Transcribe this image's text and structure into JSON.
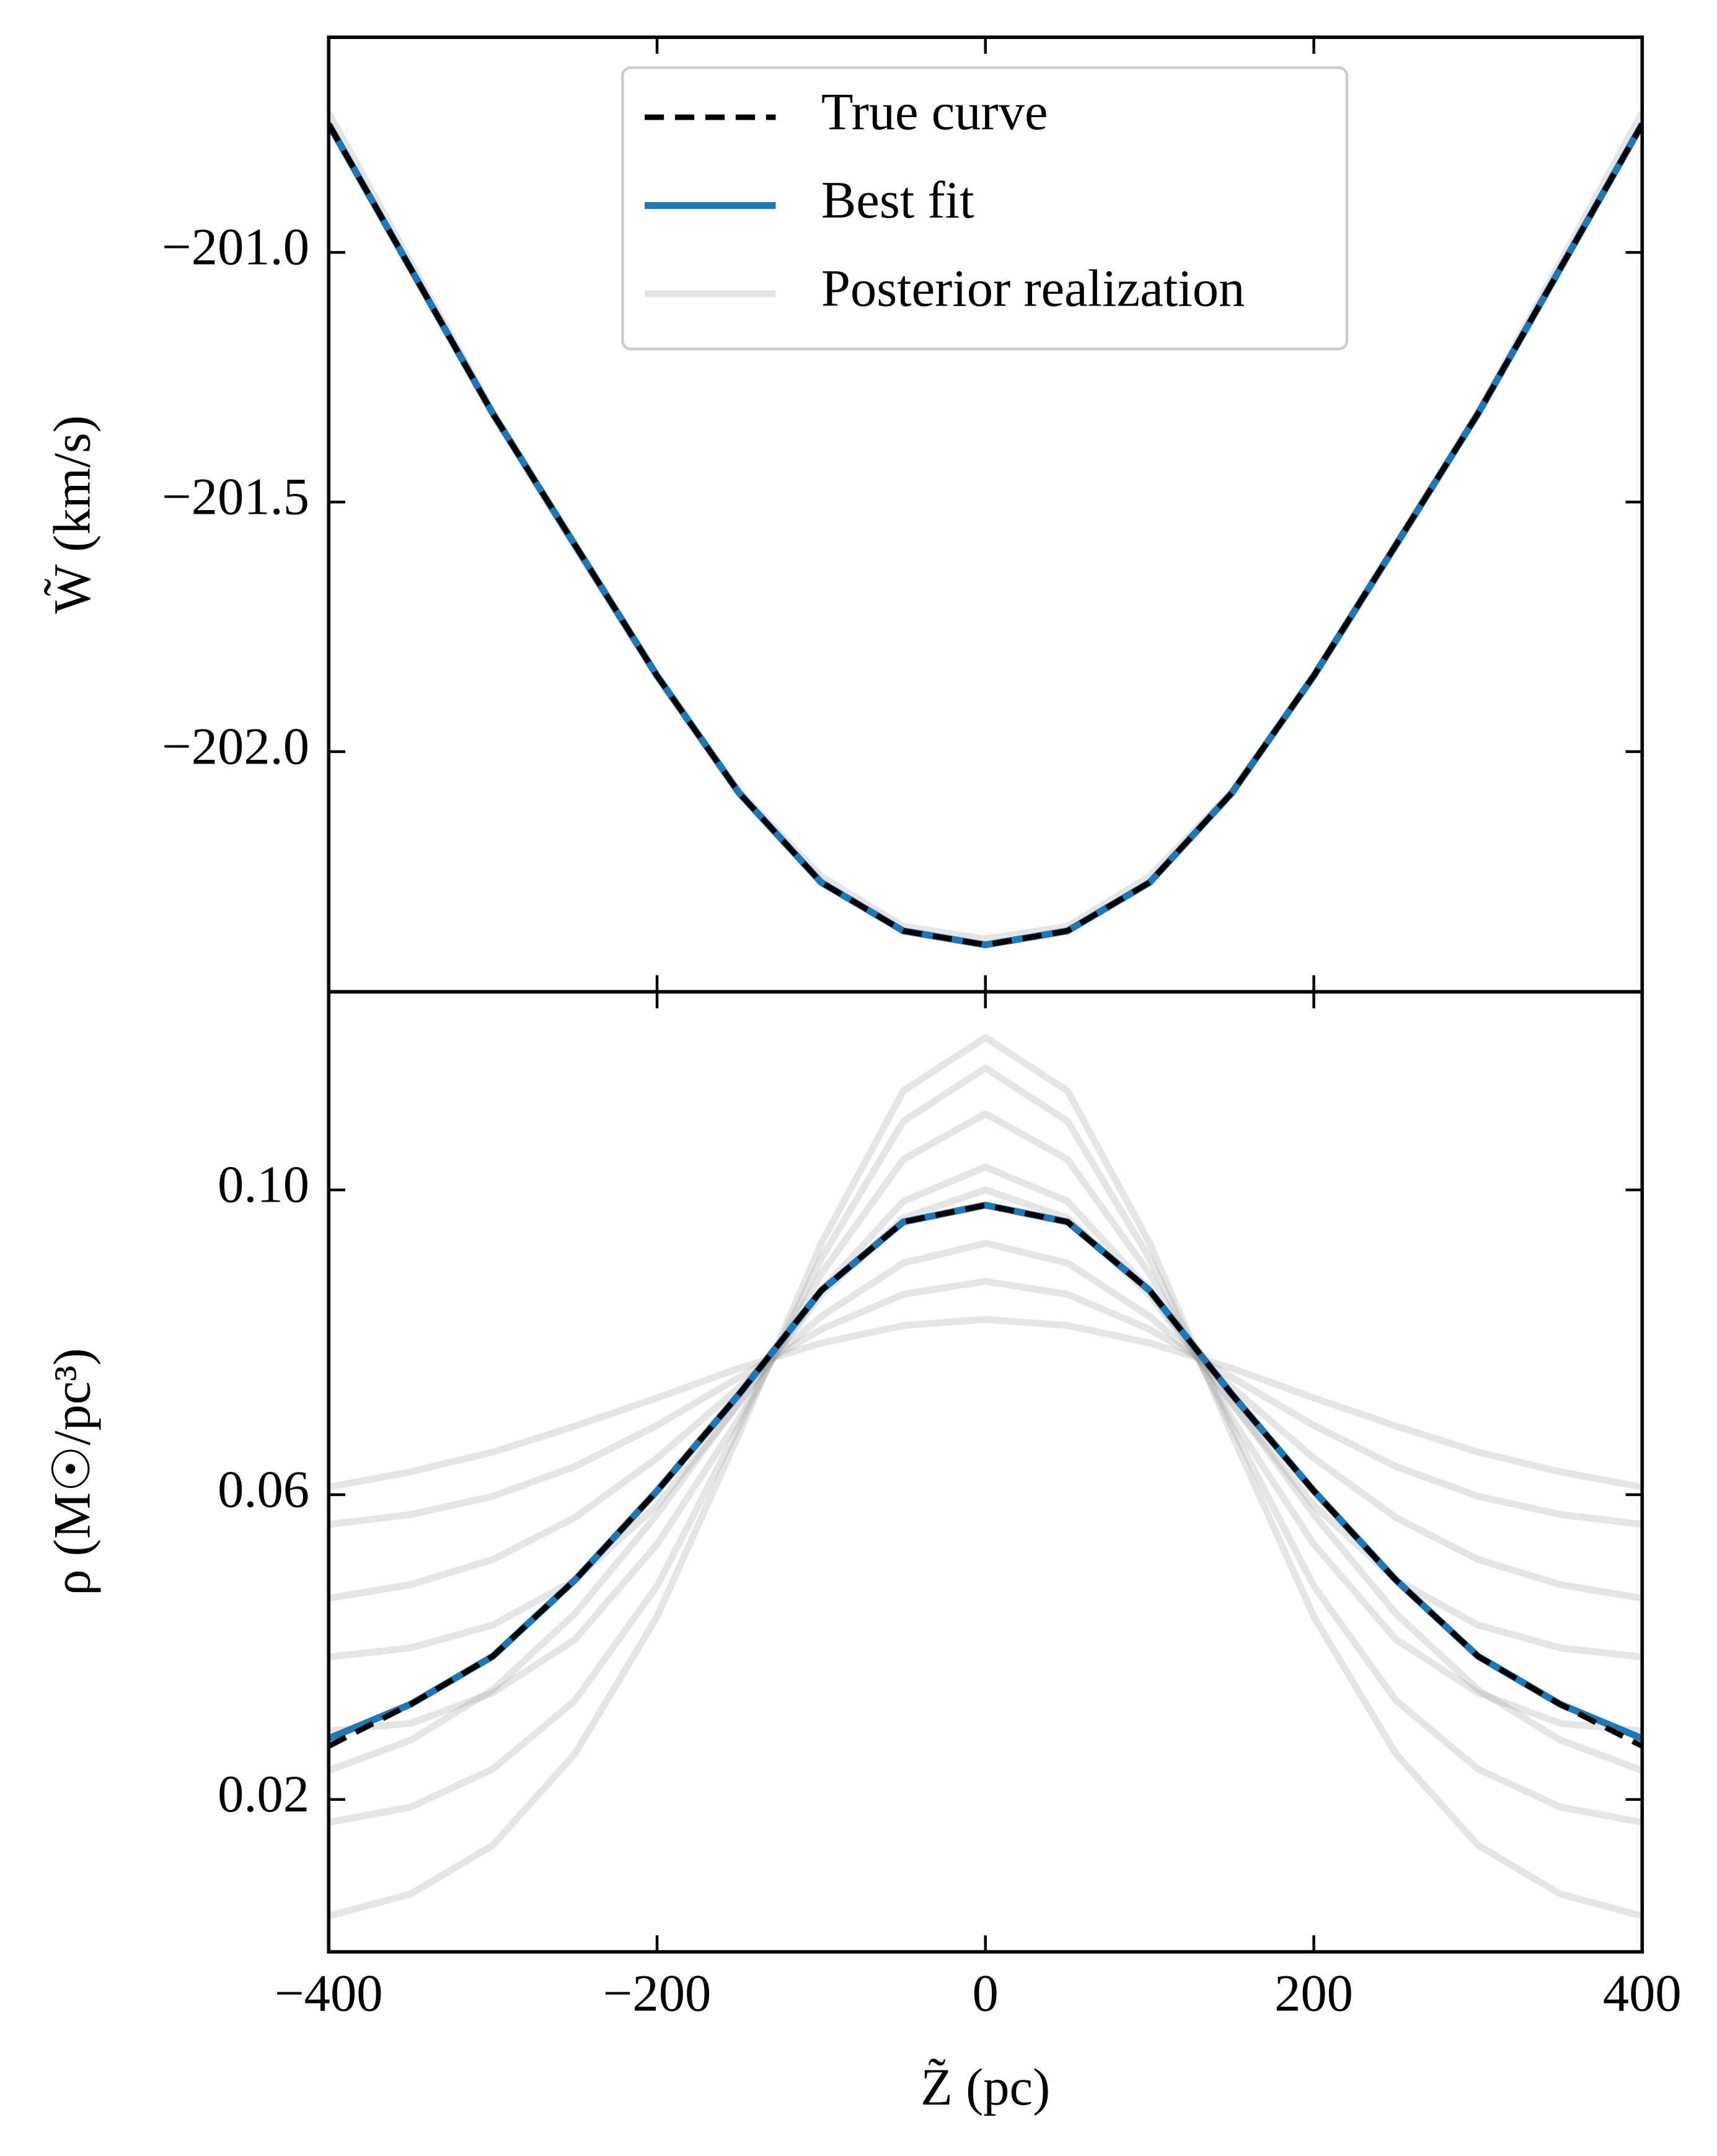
{
  "chart_data": [
    {
      "type": "line",
      "ylabel": "W̃ (km/s)",
      "x": [
        -400,
        -350,
        -300,
        -250,
        -200,
        -150,
        -100,
        -50,
        0,
        50,
        100,
        150,
        200,
        250,
        300,
        350,
        400
      ],
      "xlim": [
        -400,
        400
      ],
      "xticks": [
        -400,
        -200,
        0,
        200,
        400
      ],
      "ylim": [
        -202.481,
        -200.569
      ],
      "yticks": [
        {
          "value": -201.0,
          "label": "−201.0"
        },
        {
          "value": -201.5,
          "label": "−201.5"
        },
        {
          "value": -202.0,
          "label": "−202.0"
        }
      ],
      "legend": "upper center",
      "series": [
        {
          "name": "Posterior realization",
          "color": "#999999",
          "alpha": 0.25,
          "values": [
            -200.72,
            -201.02,
            -201.32,
            -201.59,
            -201.85,
            -202.08,
            -202.25,
            -202.35,
            -202.375,
            -202.35,
            -202.25,
            -202.08,
            -201.85,
            -201.59,
            -201.32,
            -201.02,
            -200.72
          ]
        },
        {
          "name": "Best fit",
          "color": "#1f77b4",
          "values": [
            -200.743,
            -201.033,
            -201.323,
            -201.586,
            -201.848,
            -202.083,
            -202.262,
            -202.359,
            -202.387,
            -202.359,
            -202.262,
            -202.083,
            -201.848,
            -201.586,
            -201.323,
            -201.033,
            -200.743
          ]
        },
        {
          "name": "True curve",
          "color": "#000000",
          "linestyle": "dashed",
          "values": [
            -200.743,
            -201.033,
            -201.323,
            -201.586,
            -201.848,
            -202.083,
            -202.262,
            -202.359,
            -202.387,
            -202.359,
            -202.262,
            -202.083,
            -201.848,
            -201.586,
            -201.323,
            -201.033,
            -200.743
          ]
        }
      ]
    },
    {
      "type": "line",
      "xlabel": "Z̃ (pc)",
      "ylabel": "ρ (M☉/pc³)",
      "x": [
        -400,
        -350,
        -300,
        -250,
        -200,
        -150,
        -100,
        -50,
        0,
        50,
        100,
        150,
        200,
        250,
        300,
        350,
        400
      ],
      "xlim": [
        -400,
        400
      ],
      "xticks": [
        {
          "value": -400,
          "label": "−400"
        },
        {
          "value": -200,
          "label": "−200"
        },
        0,
        200,
        400
      ],
      "ylim": [
        0,
        0.126
      ],
      "yticks": [
        0.02,
        0.06,
        {
          "value": 0.1,
          "label": "0.10"
        }
      ],
      "series": [
        {
          "color": "#999999",
          "alpha": 0.25,
          "values": [
            0.0047,
            0.0076,
            0.014,
            0.026,
            0.044,
            0.068,
            0.093,
            0.113,
            0.12,
            0.113,
            0.093,
            0.068,
            0.044,
            0.026,
            0.014,
            0.0076,
            0.0047
          ]
        },
        {
          "color": "#999999",
          "alpha": 0.25,
          "values": [
            0.017,
            0.019,
            0.024,
            0.033,
            0.048,
            0.069,
            0.091,
            0.109,
            0.116,
            0.109,
            0.091,
            0.069,
            0.048,
            0.033,
            0.024,
            0.019,
            0.017
          ]
        },
        {
          "color": "#999999",
          "alpha": 0.25,
          "values": [
            0.029,
            0.03,
            0.034,
            0.041,
            0.0535,
            0.07,
            0.089,
            0.104,
            0.11,
            0.104,
            0.089,
            0.07,
            0.0535,
            0.041,
            0.034,
            0.03,
            0.029
          ]
        },
        {
          "color": "#999999",
          "alpha": 0.25,
          "values": [
            0.0387,
            0.0399,
            0.0429,
            0.0488,
            0.0586,
            0.072,
            0.0868,
            0.0985,
            0.103,
            0.0985,
            0.0868,
            0.072,
            0.0586,
            0.0488,
            0.0429,
            0.0399,
            0.0387
          ]
        },
        {
          "color": "#999999",
          "alpha": 0.25,
          "values": [
            0.0464,
            0.0482,
            0.0515,
            0.057,
            0.0648,
            0.0741,
            0.0834,
            0.0904,
            0.093,
            0.0904,
            0.0834,
            0.0741,
            0.0648,
            0.057,
            0.0515,
            0.0482,
            0.0464
          ]
        },
        {
          "color": "#999999",
          "alpha": 0.25,
          "values": [
            0.0561,
            0.0574,
            0.0598,
            0.0637,
            0.0691,
            0.0754,
            0.0817,
            0.0863,
            0.088,
            0.0863,
            0.0817,
            0.0754,
            0.0691,
            0.0637,
            0.0598,
            0.0574,
            0.0561
          ]
        },
        {
          "color": "#999999",
          "alpha": 0.25,
          "values": [
            0.061,
            0.063,
            0.0656,
            0.069,
            0.0727,
            0.0766,
            0.0799,
            0.0822,
            0.083,
            0.0822,
            0.0799,
            0.0766,
            0.0727,
            0.069,
            0.0656,
            0.063,
            0.061
          ]
        },
        {
          "color": "#999999",
          "alpha": 0.25,
          "values": [
            0.0238,
            0.0278,
            0.0344,
            0.0444,
            0.0574,
            0.0722,
            0.0862,
            0.0963,
            0.1,
            0.0963,
            0.0862,
            0.0722,
            0.0574,
            0.0444,
            0.0344,
            0.0278,
            0.0238
          ]
        },
        {
          "color": "#1f77b4",
          "values": [
            0.028,
            0.0325,
            0.0388,
            0.0488,
            0.0605,
            0.0732,
            0.0868,
            0.0958,
            0.098,
            0.0958,
            0.0868,
            0.0732,
            0.0605,
            0.0488,
            0.0388,
            0.0325,
            0.028
          ]
        },
        {
          "color": "#000000",
          "linestyle": "dashed",
          "values": [
            0.027,
            0.0325,
            0.0388,
            0.0488,
            0.0605,
            0.0732,
            0.0868,
            0.0958,
            0.098,
            0.0958,
            0.0868,
            0.0732,
            0.0605,
            0.0488,
            0.0388,
            0.0325,
            0.027
          ]
        }
      ]
    }
  ]
}
